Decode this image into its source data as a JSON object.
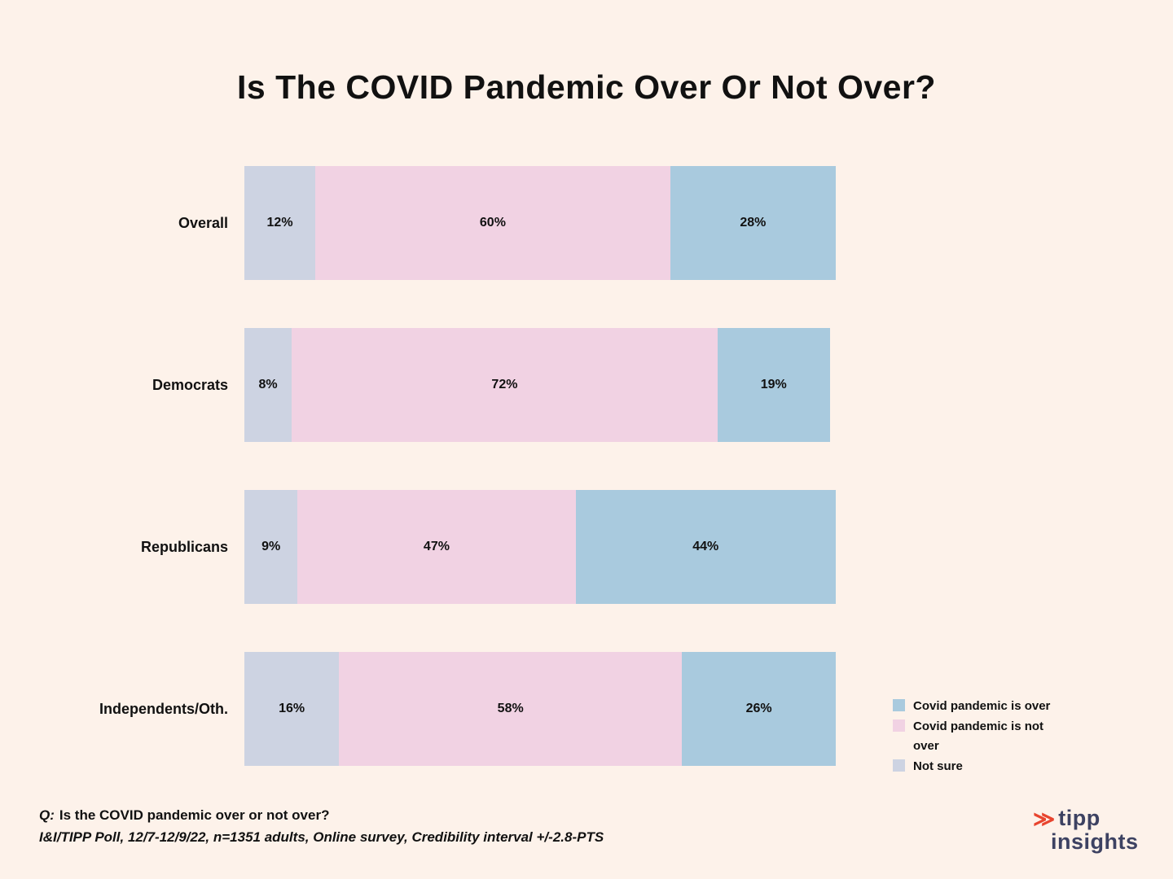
{
  "title": "Is The COVID Pandemic Over Or Not Over?",
  "chart_data": {
    "type": "bar",
    "orientation": "horizontal-stacked",
    "title": "Is The COVID Pandemic Over Or Not Over?",
    "categories": [
      "Overall",
      "Democrats",
      "Republicans",
      "Independents/Oth."
    ],
    "series": [
      {
        "name": "Not sure",
        "color": "#cdd3e2",
        "values": [
          12,
          8,
          9,
          16
        ]
      },
      {
        "name": "Covid pandemic is not over",
        "color": "#f1d2e3",
        "values": [
          60,
          72,
          47,
          58
        ]
      },
      {
        "name": "Covid pandemic is over",
        "color": "#a9cade",
        "values": [
          28,
          19,
          44,
          26
        ]
      }
    ],
    "legend": [
      {
        "label": "Covid pandemic is over",
        "color": "#a9cade"
      },
      {
        "label": "Covid pandemic is not over",
        "color": "#f1d2e3"
      },
      {
        "label": "Not sure",
        "color": "#cdd3e2"
      }
    ],
    "legend_position": "bottom-right",
    "xlim": [
      0,
      100
    ],
    "value_suffix": "%",
    "grid": false
  },
  "footer": {
    "q_label": "Q:",
    "question": "Is the COVID pandemic over or not over?",
    "source": "I&I/TIPP Poll, 12/7-12/9/22, n=1351 adults, Online survey, Credibility interval +/-2.8-PTS"
  },
  "logo": {
    "icon": "fast-forward-chevrons",
    "accent_color": "#e8442e",
    "text_color": "#3d4262",
    "text_top": "tipp",
    "text_bottom": "insights"
  },
  "background_color": "#fdf2ea"
}
